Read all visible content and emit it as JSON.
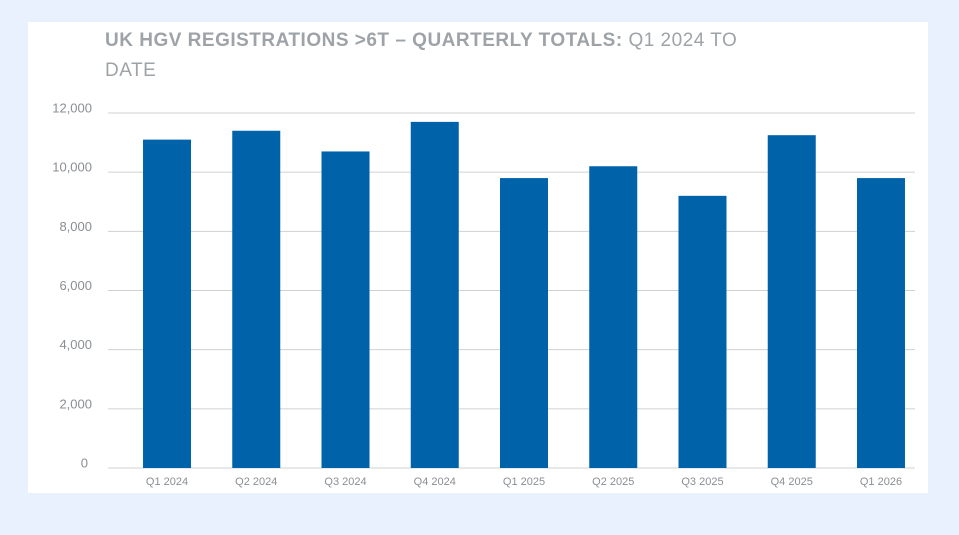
{
  "chart_data": {
    "type": "bar",
    "title": "UK HGV REGISTRATIONS >6T – QUARTERLY TOTALS:",
    "subtitle": "Q1 2024 TO DATE",
    "categories": [
      "Q1 2024",
      "Q2 2024",
      "Q3 2024",
      "Q4 2024",
      "Q1 2025",
      "Q2 2025",
      "Q3 2025",
      "Q4 2025",
      "Q1 2026"
    ],
    "values": [
      11100,
      11400,
      10700,
      11700,
      9800,
      10200,
      9200,
      11250,
      9800
    ],
    "color": "#0062a8",
    "ylim": [
      0,
      12000
    ],
    "yticks": [
      0,
      {
        "value": 2000,
        "label": "2,000"
      },
      {
        "value": 4000,
        "label": "4,000"
      },
      {
        "value": 6000,
        "label": "6,000"
      },
      {
        "value": 8000,
        "label": "8,000"
      },
      {
        "value": 10000,
        "label": "10,000"
      },
      {
        "value": 12000,
        "label": "12,000"
      }
    ],
    "grid": true
  }
}
